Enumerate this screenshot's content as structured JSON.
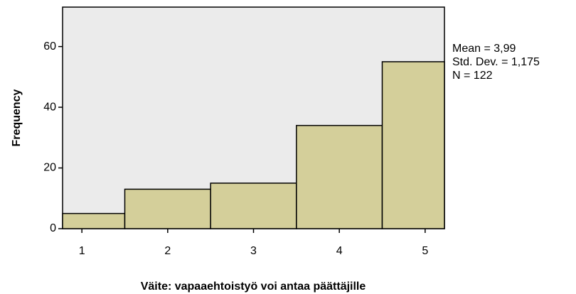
{
  "chart_data": {
    "type": "histogram",
    "bins": [
      0.775,
      1.5,
      2.5,
      3.5,
      4.5,
      5.225
    ],
    "counts": [
      5,
      13,
      15,
      34,
      55
    ],
    "color": "#d4cf9a",
    "xlim": [
      0.775,
      5.225
    ],
    "xticks": [
      1,
      2,
      3,
      4,
      5
    ],
    "ylim": [
      0,
      73
    ],
    "yticks": [
      0,
      20,
      40,
      60
    ],
    "xlabel": "Väite: vapaaehtoistyö voi antaa päättäjille",
    "ylabel": "Frequency",
    "annotations": [
      "Mean = 3,99",
      "Std. Dev. = 1,175",
      "N = 122"
    ]
  }
}
